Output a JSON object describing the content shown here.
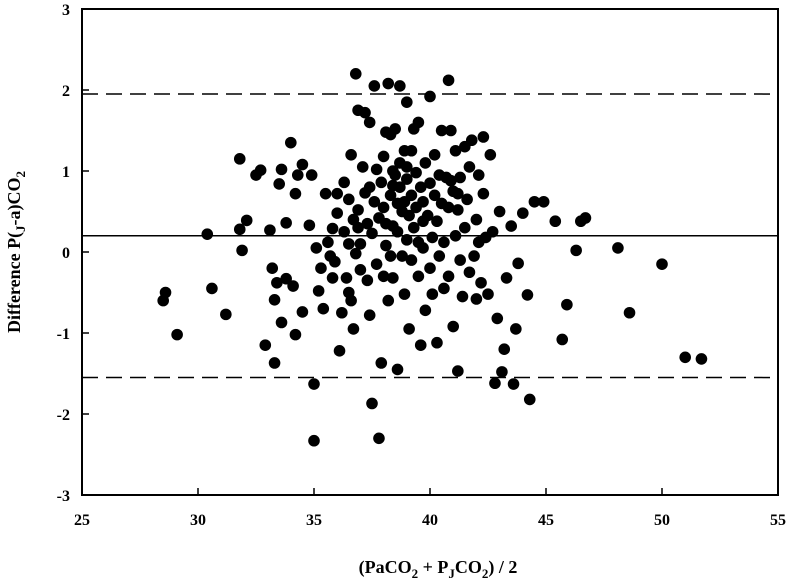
{
  "chart_data": {
    "type": "scatter",
    "xlabel": {
      "pre": "(PaCO",
      "s1": "2",
      "mid": " + P",
      "s2": "J",
      "mid2": "CO",
      "s3": "2",
      "post": ") / 2"
    },
    "ylabel": {
      "pre": "Difference P(",
      "s1": "J",
      "mid": "-a)CO",
      "s2": "2"
    },
    "xlim": [
      25,
      55
    ],
    "ylim": [
      -3,
      3
    ],
    "xticks": [
      25,
      30,
      35,
      40,
      45,
      50,
      55
    ],
    "yticks": [
      -3,
      -2,
      -1,
      0,
      1,
      2,
      3
    ],
    "grid": false,
    "mean_line": 0.2,
    "limits_of_agreement": [
      1.95,
      -1.55
    ],
    "points": [
      [
        28.5,
        -0.6
      ],
      [
        28.6,
        -0.5
      ],
      [
        29.1,
        -1.02
      ],
      [
        30.4,
        0.22
      ],
      [
        30.6,
        -0.45
      ],
      [
        31.2,
        -0.77
      ],
      [
        31.8,
        1.15
      ],
      [
        31.8,
        0.28
      ],
      [
        31.9,
        0.02
      ],
      [
        32.1,
        0.39
      ],
      [
        32.5,
        0.95
      ],
      [
        32.7,
        1.01
      ],
      [
        32.9,
        -1.15
      ],
      [
        33.1,
        0.27
      ],
      [
        33.2,
        -0.2
      ],
      [
        33.3,
        -0.59
      ],
      [
        33.4,
        -0.38
      ],
      [
        33.5,
        0.84
      ],
      [
        33.6,
        -0.87
      ],
      [
        33.8,
        -0.33
      ],
      [
        33.8,
        0.36
      ],
      [
        33.6,
        1.02
      ],
      [
        34.0,
        1.35
      ],
      [
        34.1,
        -0.42
      ],
      [
        34.2,
        -1.02
      ],
      [
        34.2,
        0.72
      ],
      [
        34.3,
        0.95
      ],
      [
        34.5,
        1.08
      ],
      [
        34.5,
        -0.74
      ],
      [
        35.0,
        -1.63
      ],
      [
        33.3,
        -1.37
      ],
      [
        35.0,
        -2.33
      ],
      [
        34.8,
        0.33
      ],
      [
        34.9,
        0.95
      ],
      [
        35.1,
        0.05
      ],
      [
        35.2,
        -0.48
      ],
      [
        35.3,
        -0.2
      ],
      [
        35.4,
        -0.7
      ],
      [
        35.5,
        0.72
      ],
      [
        35.6,
        0.12
      ],
      [
        35.7,
        -0.05
      ],
      [
        35.8,
        0.29
      ],
      [
        35.8,
        -0.32
      ],
      [
        35.9,
        -0.12
      ],
      [
        36.0,
        0.72
      ],
      [
        36.0,
        0.48
      ],
      [
        36.1,
        -1.22
      ],
      [
        36.2,
        -0.75
      ],
      [
        36.3,
        0.25
      ],
      [
        36.3,
        0.86
      ],
      [
        36.4,
        -0.32
      ],
      [
        36.5,
        -0.5
      ],
      [
        36.5,
        0.1
      ],
      [
        36.5,
        0.65
      ],
      [
        36.6,
        -0.6
      ],
      [
        36.6,
        1.2
      ],
      [
        36.7,
        -0.95
      ],
      [
        36.7,
        0.4
      ],
      [
        36.8,
        -0.02
      ],
      [
        36.9,
        1.75
      ],
      [
        36.8,
        2.2
      ],
      [
        36.9,
        0.52
      ],
      [
        37.0,
        0.1
      ],
      [
        37.0,
        -0.22
      ],
      [
        37.1,
        1.05
      ],
      [
        37.2,
        1.72
      ],
      [
        37.2,
        0.73
      ],
      [
        37.3,
        0.35
      ],
      [
        37.3,
        -0.35
      ],
      [
        37.4,
        -0.78
      ],
      [
        37.4,
        1.6
      ],
      [
        37.5,
        -1.87
      ],
      [
        37.5,
        0.23
      ],
      [
        37.6,
        0.62
      ],
      [
        37.6,
        2.05
      ],
      [
        37.7,
        1.02
      ],
      [
        37.7,
        -0.15
      ],
      [
        37.8,
        -2.3
      ],
      [
        37.8,
        0.42
      ],
      [
        37.9,
        -1.37
      ],
      [
        37.9,
        0.86
      ],
      [
        38.0,
        1.18
      ],
      [
        38.0,
        -0.3
      ],
      [
        38.0,
        0.55
      ],
      [
        38.1,
        1.48
      ],
      [
        38.1,
        0.08
      ],
      [
        38.2,
        -0.6
      ],
      [
        38.2,
        2.08
      ],
      [
        38.3,
        1.45
      ],
      [
        38.3,
        0.7
      ],
      [
        38.3,
        -0.05
      ],
      [
        38.4,
        0.32
      ],
      [
        38.4,
        -0.32
      ],
      [
        38.4,
        1.0
      ],
      [
        38.5,
        0.95
      ],
      [
        38.5,
        1.52
      ],
      [
        38.6,
        -1.45
      ],
      [
        38.6,
        0.6
      ],
      [
        38.6,
        0.25
      ],
      [
        38.7,
        2.05
      ],
      [
        38.7,
        1.1
      ],
      [
        38.7,
        0.8
      ],
      [
        38.8,
        0.5
      ],
      [
        38.8,
        -0.05
      ],
      [
        38.9,
        0.62
      ],
      [
        38.9,
        1.25
      ],
      [
        38.9,
        -0.52
      ],
      [
        39.0,
        0.9
      ],
      [
        39.0,
        0.15
      ],
      [
        39.0,
        1.85
      ],
      [
        39.1,
        0.45
      ],
      [
        39.1,
        -0.95
      ],
      [
        39.2,
        0.7
      ],
      [
        39.2,
        1.25
      ],
      [
        39.2,
        -0.1
      ],
      [
        39.3,
        1.52
      ],
      [
        39.3,
        0.3
      ],
      [
        39.4,
        0.98
      ],
      [
        39.4,
        0.55
      ],
      [
        39.5,
        -0.3
      ],
      [
        39.5,
        1.6
      ],
      [
        39.5,
        0.12
      ],
      [
        39.6,
        0.8
      ],
      [
        39.6,
        -1.15
      ],
      [
        39.7,
        0.05
      ],
      [
        39.7,
        0.62
      ],
      [
        39.8,
        1.1
      ],
      [
        39.8,
        -0.72
      ],
      [
        39.9,
        0.45
      ],
      [
        40.0,
        0.85
      ],
      [
        40.0,
        1.92
      ],
      [
        40.0,
        -0.2
      ],
      [
        40.1,
        0.18
      ],
      [
        40.1,
        -0.52
      ],
      [
        40.2,
        0.7
      ],
      [
        40.2,
        1.2
      ],
      [
        40.3,
        -1.12
      ],
      [
        40.3,
        0.38
      ],
      [
        40.4,
        0.95
      ],
      [
        40.4,
        -0.05
      ],
      [
        40.5,
        0.6
      ],
      [
        40.5,
        1.5
      ],
      [
        40.6,
        -0.45
      ],
      [
        40.6,
        0.12
      ],
      [
        40.7,
        0.92
      ],
      [
        40.8,
        -0.3
      ],
      [
        40.8,
        2.12
      ],
      [
        40.8,
        0.55
      ],
      [
        40.9,
        1.5
      ],
      [
        41.0,
        -0.92
      ],
      [
        41.0,
        0.75
      ],
      [
        41.1,
        0.2
      ],
      [
        41.1,
        1.25
      ],
      [
        41.2,
        -1.47
      ],
      [
        41.2,
        0.52
      ],
      [
        41.3,
        -0.1
      ],
      [
        41.3,
        0.92
      ],
      [
        41.4,
        -0.55
      ],
      [
        41.5,
        1.3
      ],
      [
        41.5,
        0.3
      ],
      [
        41.6,
        0.65
      ],
      [
        41.7,
        -0.25
      ],
      [
        41.7,
        1.05
      ],
      [
        41.8,
        1.38
      ],
      [
        41.9,
        -0.05
      ],
      [
        42.0,
        0.4
      ],
      [
        42.0,
        -0.58
      ],
      [
        42.1,
        0.12
      ],
      [
        42.1,
        0.95
      ],
      [
        42.2,
        -0.38
      ],
      [
        42.3,
        0.72
      ],
      [
        42.3,
        1.42
      ],
      [
        42.4,
        0.18
      ],
      [
        42.5,
        -0.52
      ],
      [
        42.6,
        1.2
      ],
      [
        42.7,
        0.25
      ],
      [
        42.8,
        -1.62
      ],
      [
        42.9,
        -0.82
      ],
      [
        43.0,
        0.5
      ],
      [
        43.1,
        -1.48
      ],
      [
        43.2,
        -1.2
      ],
      [
        43.3,
        -0.32
      ],
      [
        43.5,
        0.32
      ],
      [
        43.6,
        -1.63
      ],
      [
        43.7,
        -0.95
      ],
      [
        43.8,
        -0.14
      ],
      [
        44.0,
        0.48
      ],
      [
        44.2,
        -0.53
      ],
      [
        44.3,
        -1.82
      ],
      [
        44.5,
        0.62
      ],
      [
        44.9,
        0.62
      ],
      [
        45.4,
        0.38
      ],
      [
        45.7,
        -1.08
      ],
      [
        45.9,
        -0.65
      ],
      [
        46.3,
        0.02
      ],
      [
        46.5,
        0.38
      ],
      [
        46.7,
        0.42
      ],
      [
        48.1,
        0.05
      ],
      [
        48.6,
        -0.75
      ],
      [
        50.0,
        -0.15
      ],
      [
        51.0,
        -1.3
      ],
      [
        51.7,
        -1.32
      ],
      [
        36.9,
        0.3
      ],
      [
        38.1,
        0.35
      ],
      [
        39.7,
        0.38
      ],
      [
        41.2,
        0.72
      ],
      [
        37.4,
        0.8
      ],
      [
        38.4,
        0.82
      ],
      [
        40.9,
        0.88
      ],
      [
        39.0,
        1.05
      ]
    ]
  }
}
